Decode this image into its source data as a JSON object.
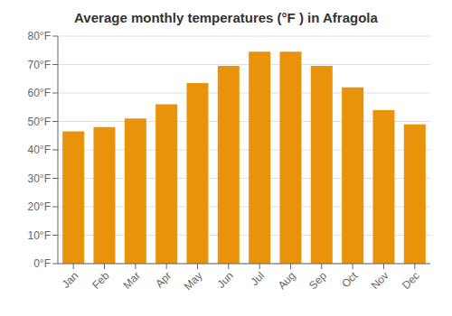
{
  "chart_data": {
    "type": "bar",
    "title": "Average monthly temperatures (°F ) in Afragola",
    "categories": [
      "Jan",
      "Feb",
      "Mar",
      "Apr",
      "May",
      "Jun",
      "Jul",
      "Aug",
      "Sep",
      "Oct",
      "Nov",
      "Dec"
    ],
    "values": [
      46.5,
      48,
      51,
      56,
      63.5,
      69.5,
      74.5,
      74.5,
      69.5,
      62,
      54,
      49
    ],
    "color": "#E8930A",
    "ylim": [
      0,
      80
    ],
    "yticks": [
      {
        "value": 0,
        "label": "0°F"
      },
      {
        "value": 10,
        "label": "10°F"
      },
      {
        "value": 20,
        "label": "20°F"
      },
      {
        "value": 30,
        "label": "30°F"
      },
      {
        "value": 40,
        "label": "40°F"
      },
      {
        "value": 50,
        "label": "50°F"
      },
      {
        "value": 60,
        "label": "60°F"
      },
      {
        "value": 70,
        "label": "70°F"
      },
      {
        "value": 80,
        "label": "80°F"
      }
    ],
    "grid": true
  }
}
